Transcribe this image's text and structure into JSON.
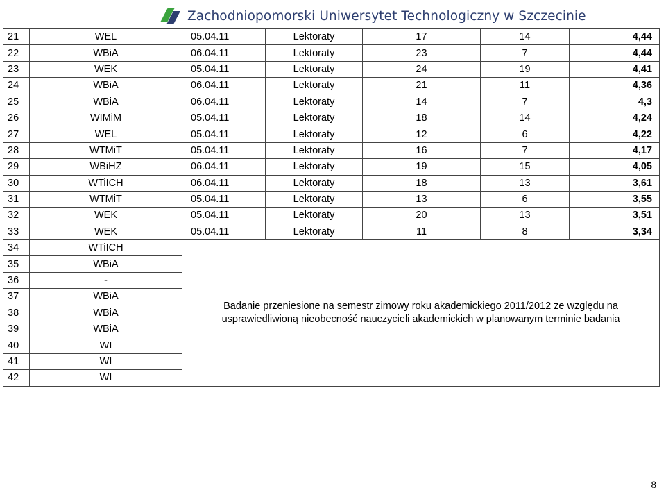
{
  "header": {
    "title": "Zachodniopomorski Uniwersytet Technologiczny w Szczecinie",
    "logo_icon": "zut-logo-icon",
    "logo_colors": {
      "green": "#3aa33d",
      "navy": "#2d3e6f"
    }
  },
  "rows": [
    {
      "no": "21",
      "dept": "WEL",
      "date": "05.04.11",
      "type": "Lektoraty",
      "a": "17",
      "b": "14",
      "score": "4,44"
    },
    {
      "no": "22",
      "dept": "WBiA",
      "date": "06.04.11",
      "type": "Lektoraty",
      "a": "23",
      "b": "7",
      "score": "4,44"
    },
    {
      "no": "23",
      "dept": "WEK",
      "date": "05.04.11",
      "type": "Lektoraty",
      "a": "24",
      "b": "19",
      "score": "4,41"
    },
    {
      "no": "24",
      "dept": "WBiA",
      "date": "06.04.11",
      "type": "Lektoraty",
      "a": "21",
      "b": "11",
      "score": "4,36"
    },
    {
      "no": "25",
      "dept": "WBiA",
      "date": "06.04.11",
      "type": "Lektoraty",
      "a": "14",
      "b": "7",
      "score": "4,3"
    },
    {
      "no": "26",
      "dept": "WIMiM",
      "date": "05.04.11",
      "type": "Lektoraty",
      "a": "18",
      "b": "14",
      "score": "4,24"
    },
    {
      "no": "27",
      "dept": "WEL",
      "date": "05.04.11",
      "type": "Lektoraty",
      "a": "12",
      "b": "6",
      "score": "4,22"
    },
    {
      "no": "28",
      "dept": "WTMiT",
      "date": "05.04.11",
      "type": "Lektoraty",
      "a": "16",
      "b": "7",
      "score": "4,17"
    },
    {
      "no": "29",
      "dept": "WBiHZ",
      "date": "06.04.11",
      "type": "Lektoraty",
      "a": "19",
      "b": "15",
      "score": "4,05"
    },
    {
      "no": "30",
      "dept": "WTiICH",
      "date": "06.04.11",
      "type": "Lektoraty",
      "a": "18",
      "b": "13",
      "score": "3,61"
    },
    {
      "no": "31",
      "dept": "WTMiT",
      "date": "05.04.11",
      "type": "Lektoraty",
      "a": "13",
      "b": "6",
      "score": "3,55"
    },
    {
      "no": "32",
      "dept": "WEK",
      "date": "05.04.11",
      "type": "Lektoraty",
      "a": "20",
      "b": "13",
      "score": "3,51"
    },
    {
      "no": "33",
      "dept": "WEK",
      "date": "05.04.11",
      "type": "Lektoraty",
      "a": "11",
      "b": "8",
      "score": "3,34"
    }
  ],
  "postponed_rows": [
    {
      "no": "34",
      "dept": "WTiICH"
    },
    {
      "no": "35",
      "dept": "WBiA"
    },
    {
      "no": "36",
      "dept": "-"
    },
    {
      "no": "37",
      "dept": "WBiA"
    },
    {
      "no": "38",
      "dept": "WBiA"
    },
    {
      "no": "39",
      "dept": "WBiA"
    },
    {
      "no": "40",
      "dept": "WI"
    },
    {
      "no": "41",
      "dept": "WI"
    },
    {
      "no": "42",
      "dept": "WI"
    }
  ],
  "postponed_note": "Badanie przeniesione na semestr zimowy roku akademickiego 2011/2012 ze względu na usprawiedliwioną nieobecność nauczycieli akademickich w planowanym terminie badania",
  "page_number": "8"
}
